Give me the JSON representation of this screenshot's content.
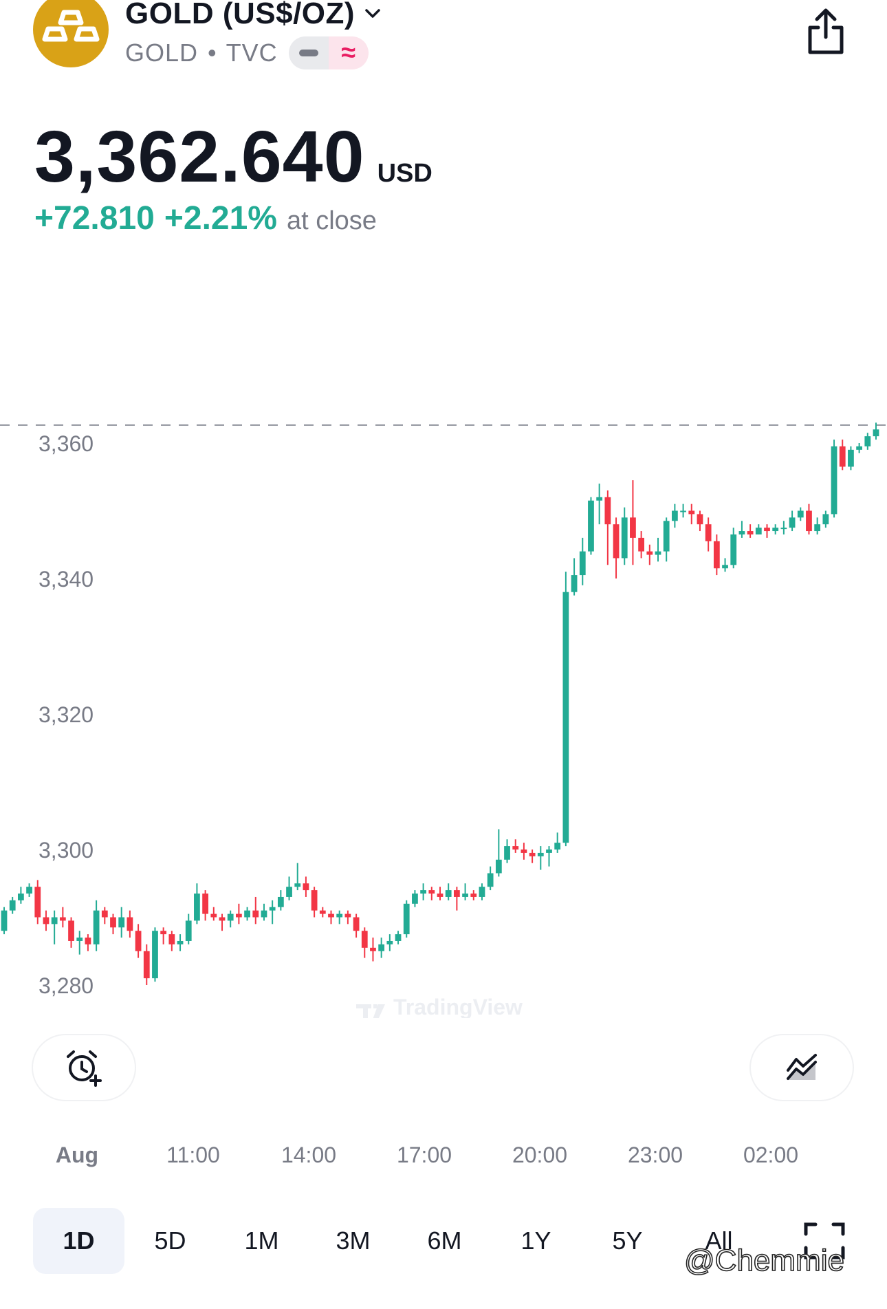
{
  "header": {
    "symbol_title": "GOLD (US$/OZ)",
    "symbol_code": "GOLD",
    "exchange": "TVC",
    "sep": "•",
    "pill_glyph": "≈",
    "icons": [
      "gold-bars-icon",
      "chevron-down-icon",
      "share-icon"
    ]
  },
  "quote": {
    "price": "3,362.640",
    "currency": "USD",
    "change": "+72.810",
    "change_pct": "+2.21%",
    "status": "at close",
    "up_color": "#22ab94",
    "down_color": "#f23645"
  },
  "chart_data": {
    "type": "candlestick",
    "ytick_labels": [
      "3,360",
      "3,340",
      "3,320",
      "3,300",
      "3,280"
    ],
    "ytick_values": [
      3360,
      3340,
      3320,
      3300,
      3280
    ],
    "xtick_labels": [
      "Aug",
      "11:00",
      "14:00",
      "17:00",
      "20:00",
      "23:00",
      "02:00"
    ],
    "last_price": 3362.64,
    "watermark": "TradingView",
    "candles": [
      [
        3288.0,
        3291.0,
        3287.5,
        3291.5
      ],
      [
        3291.0,
        3292.5,
        3290.5,
        3293.0
      ],
      [
        3292.5,
        3293.5,
        3292.0,
        3294.5
      ],
      [
        3293.5,
        3294.5,
        3293.0,
        3295.0
      ],
      [
        3294.5,
        3290.0,
        3289.0,
        3295.5
      ],
      [
        3290.0,
        3289.0,
        3288.0,
        3291.0
      ],
      [
        3289.0,
        3290.0,
        3286.0,
        3291.0
      ],
      [
        3290.0,
        3289.5,
        3288.5,
        3291.5
      ],
      [
        3289.5,
        3286.5,
        3285.5,
        3290.0
      ],
      [
        3286.5,
        3287.0,
        3284.5,
        3288.0
      ],
      [
        3287.0,
        3286.0,
        3285.0,
        3287.5
      ],
      [
        3286.0,
        3291.0,
        3285.0,
        3292.5
      ],
      [
        3291.0,
        3290.0,
        3289.0,
        3291.5
      ],
      [
        3290.0,
        3288.5,
        3287.5,
        3290.5
      ],
      [
        3288.5,
        3290.0,
        3287.0,
        3291.5
      ],
      [
        3290.0,
        3288.0,
        3287.0,
        3291.0
      ],
      [
        3288.0,
        3285.0,
        3284.0,
        3289.0
      ],
      [
        3285.0,
        3281.0,
        3280.0,
        3286.0
      ],
      [
        3281.0,
        3288.0,
        3280.5,
        3288.5
      ],
      [
        3288.0,
        3287.5,
        3286.0,
        3288.5
      ],
      [
        3287.5,
        3286.0,
        3285.0,
        3288.0
      ],
      [
        3286.0,
        3286.5,
        3285.0,
        3287.5
      ],
      [
        3286.5,
        3289.5,
        3286.0,
        3290.5
      ],
      [
        3289.5,
        3293.5,
        3289.0,
        3295.0
      ],
      [
        3293.5,
        3290.5,
        3289.5,
        3294.0
      ],
      [
        3290.5,
        3290.0,
        3289.5,
        3291.5
      ],
      [
        3290.0,
        3289.5,
        3288.0,
        3290.5
      ],
      [
        3289.5,
        3290.5,
        3288.5,
        3291.0
      ],
      [
        3290.5,
        3290.0,
        3289.0,
        3292.0
      ],
      [
        3290.0,
        3291.0,
        3289.5,
        3291.5
      ],
      [
        3291.0,
        3290.0,
        3289.0,
        3293.0
      ],
      [
        3290.0,
        3291.0,
        3289.5,
        3292.0
      ],
      [
        3291.0,
        3291.5,
        3289.0,
        3292.5
      ],
      [
        3291.5,
        3293.0,
        3291.0,
        3294.0
      ],
      [
        3293.0,
        3294.5,
        3292.5,
        3296.0
      ],
      [
        3294.5,
        3295.0,
        3294.0,
        3298.0
      ],
      [
        3295.0,
        3294.0,
        3293.0,
        3296.0
      ],
      [
        3294.0,
        3291.0,
        3290.0,
        3294.5
      ],
      [
        3291.0,
        3290.5,
        3290.0,
        3291.5
      ],
      [
        3290.5,
        3290.0,
        3289.0,
        3291.0
      ],
      [
        3290.0,
        3290.5,
        3289.0,
        3291.0
      ],
      [
        3290.5,
        3290.0,
        3289.0,
        3291.0
      ],
      [
        3290.0,
        3288.0,
        3287.0,
        3290.5
      ],
      [
        3288.0,
        3285.5,
        3284.0,
        3288.5
      ],
      [
        3285.5,
        3285.0,
        3283.5,
        3287.0
      ],
      [
        3285.0,
        3286.0,
        3284.0,
        3287.0
      ],
      [
        3286.0,
        3286.5,
        3285.0,
        3287.5
      ],
      [
        3286.5,
        3287.5,
        3286.0,
        3288.0
      ],
      [
        3287.5,
        3292.0,
        3287.0,
        3292.5
      ],
      [
        3292.0,
        3293.5,
        3291.5,
        3294.0
      ],
      [
        3293.5,
        3294.0,
        3292.5,
        3295.0
      ],
      [
        3294.0,
        3293.5,
        3292.5,
        3294.5
      ],
      [
        3293.5,
        3293.0,
        3292.5,
        3294.5
      ],
      [
        3293.0,
        3294.0,
        3292.5,
        3295.0
      ],
      [
        3294.0,
        3293.0,
        3291.0,
        3294.5
      ],
      [
        3293.0,
        3293.5,
        3292.5,
        3295.0
      ],
      [
        3293.5,
        3293.0,
        3292.5,
        3294.0
      ],
      [
        3293.0,
        3294.5,
        3292.5,
        3295.0
      ],
      [
        3294.5,
        3296.5,
        3294.0,
        3297.5
      ],
      [
        3296.5,
        3298.5,
        3296.0,
        3303.0
      ],
      [
        3298.5,
        3300.5,
        3298.0,
        3301.5
      ],
      [
        3300.5,
        3300.0,
        3299.5,
        3301.5
      ],
      [
        3300.0,
        3299.5,
        3298.5,
        3301.0
      ],
      [
        3299.5,
        3299.0,
        3298.0,
        3300.0
      ],
      [
        3299.0,
        3299.5,
        3297.0,
        3300.5
      ],
      [
        3299.5,
        3300.0,
        3297.5,
        3300.5
      ],
      [
        3300.0,
        3301.0,
        3299.5,
        3302.5
      ],
      [
        3301.0,
        3338.0,
        3300.5,
        3341.0
      ],
      [
        3338.0,
        3340.5,
        3337.5,
        3343.0
      ],
      [
        3340.5,
        3344.0,
        3339.0,
        3346.0
      ],
      [
        3344.0,
        3351.5,
        3343.5,
        3352.0
      ],
      [
        3351.5,
        3352.0,
        3348.0,
        3354.0
      ],
      [
        3352.0,
        3348.0,
        3342.0,
        3353.0
      ],
      [
        3348.0,
        3343.0,
        3340.0,
        3349.0
      ],
      [
        3343.0,
        3349.0,
        3342.0,
        3350.5
      ],
      [
        3349.0,
        3346.0,
        3342.0,
        3354.5
      ],
      [
        3346.0,
        3344.0,
        3343.0,
        3347.0
      ],
      [
        3344.0,
        3343.5,
        3342.0,
        3345.0
      ],
      [
        3343.5,
        3344.0,
        3342.5,
        3346.0
      ],
      [
        3344.0,
        3348.5,
        3342.5,
        3349.0
      ],
      [
        3348.5,
        3350.0,
        3347.5,
        3351.0
      ],
      [
        3350.0,
        3350.0,
        3349.0,
        3351.0
      ],
      [
        3350.0,
        3349.5,
        3348.0,
        3351.0
      ],
      [
        3349.5,
        3348.0,
        3347.0,
        3350.0
      ],
      [
        3348.0,
        3345.5,
        3344.0,
        3349.0
      ],
      [
        3345.5,
        3341.5,
        3340.5,
        3346.5
      ],
      [
        3341.5,
        3342.0,
        3341.0,
        3343.0
      ],
      [
        3342.0,
        3346.5,
        3341.5,
        3347.5
      ],
      [
        3346.5,
        3347.0,
        3346.0,
        3348.5
      ],
      [
        3347.0,
        3346.5,
        3346.0,
        3348.0
      ],
      [
        3346.5,
        3347.5,
        3346.5,
        3348.0
      ],
      [
        3347.5,
        3347.0,
        3346.0,
        3348.0
      ],
      [
        3347.0,
        3347.5,
        3346.5,
        3348.0
      ],
      [
        3347.5,
        3347.5,
        3346.5,
        3348.5
      ],
      [
        3347.5,
        3349.0,
        3347.0,
        3350.0
      ],
      [
        3349.0,
        3350.0,
        3348.5,
        3350.5
      ],
      [
        3350.0,
        3347.0,
        3346.5,
        3351.0
      ],
      [
        3347.0,
        3348.0,
        3346.5,
        3349.0
      ],
      [
        3348.0,
        3349.5,
        3347.5,
        3350.0
      ],
      [
        3349.5,
        3359.5,
        3349.0,
        3360.5
      ],
      [
        3359.5,
        3356.5,
        3356.0,
        3360.5
      ],
      [
        3356.5,
        3359.0,
        3356.0,
        3359.5
      ],
      [
        3359.0,
        3359.5,
        3358.5,
        3360.0
      ],
      [
        3359.5,
        3361.0,
        3359.0,
        3361.5
      ],
      [
        3361.0,
        3362.0,
        3360.5,
        3363.0
      ]
    ]
  },
  "toolbar": {
    "alert_icon": "alarm-plus-icon",
    "indicator_icon": "indicators-icon"
  },
  "ranges": [
    "1D",
    "5D",
    "1M",
    "3M",
    "6M",
    "1Y",
    "5Y",
    "All"
  ],
  "active_range": "1D",
  "fullscreen_icon": "fullscreen-icon",
  "watermark_user": "@Chemmie"
}
